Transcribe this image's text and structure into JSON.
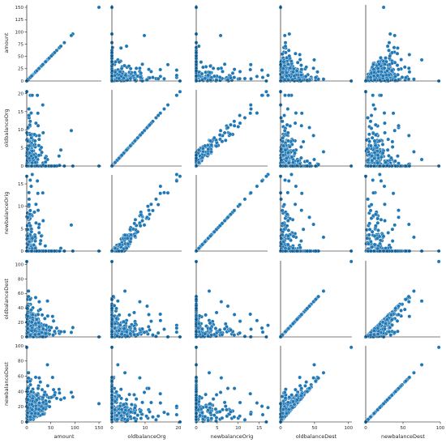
{
  "chart_data": {
    "type": "scatter",
    "title": "",
    "kind": "pairplot",
    "point_color": "#1f77b4",
    "variables": [
      {
        "name": "amount",
        "label": "amount",
        "range": [
          0,
          155
        ],
        "ticks": [
          0,
          50,
          100,
          150
        ],
        "ytick_labels": [
          "0",
          "25",
          "50",
          "75",
          "100",
          "125",
          "150"
        ]
      },
      {
        "name": "oldbalanceOrg",
        "label": "oldbalanceOrg",
        "range": [
          0,
          21
        ],
        "ticks": [
          0,
          10,
          20
        ],
        "ytick_labels": [
          "0",
          "5",
          "10",
          "15",
          "20"
        ]
      },
      {
        "name": "newbalanceOrig",
        "label": "newbalanceOrig",
        "range": [
          0,
          17
        ],
        "ticks": [
          0,
          5,
          10,
          15
        ],
        "ytick_labels": [
          "0",
          "5",
          "10",
          "15"
        ]
      },
      {
        "name": "oldbalanceDest",
        "label": "oldbalanceDest",
        "range": [
          0,
          105
        ],
        "ticks": [
          0,
          50,
          100
        ],
        "ytick_labels": [
          "0",
          "20",
          "40",
          "60",
          "80",
          "100"
        ]
      },
      {
        "name": "newbalanceDest",
        "label": "newbalanceDest",
        "range": [
          0,
          100
        ],
        "ticks": [
          0,
          50,
          100
        ],
        "ytick_labels": [
          "0",
          "20",
          "40",
          "60",
          "80",
          "100"
        ]
      }
    ],
    "ytick_values": [
      [
        0,
        25,
        50,
        75,
        100,
        125,
        150
      ],
      [
        0,
        5,
        10,
        15,
        20
      ],
      [
        0,
        5,
        10,
        15
      ],
      [
        0,
        20,
        40,
        60,
        80,
        100
      ],
      [
        0,
        20,
        40,
        60,
        80,
        100
      ]
    ],
    "outliers": {
      "amount": 150,
      "oldbalanceOrg": 20.5,
      "newbalanceOrig": 16.7,
      "oldbalanceDest": 104,
      "newbalanceDest": 98
    },
    "grid": false,
    "legend": "none"
  }
}
